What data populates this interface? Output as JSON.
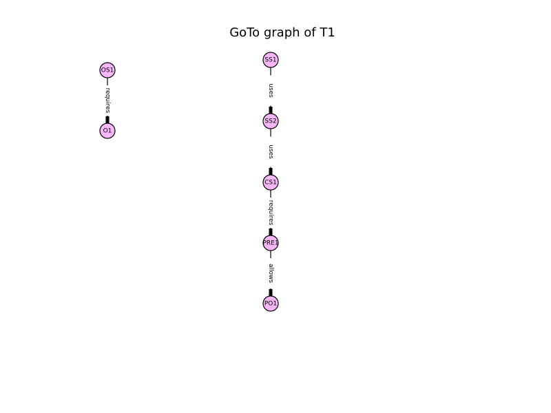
{
  "title": "GoTo graph of T1",
  "colors": {
    "node_fill": "#f7b6f7",
    "node_stroke": "#000000",
    "edge": "#000000",
    "background": "#ffffff"
  },
  "nodes": [
    {
      "id": "OS1",
      "label": "OS1"
    },
    {
      "id": "O1",
      "label": "O1"
    },
    {
      "id": "SS1",
      "label": "SS1"
    },
    {
      "id": "SS2",
      "label": "SS2"
    },
    {
      "id": "CS1",
      "label": "CS1"
    },
    {
      "id": "PRE1",
      "label": "PRE1"
    },
    {
      "id": "PO1",
      "label": "PO1"
    }
  ],
  "edges": [
    {
      "source": "OS1",
      "target": "O1",
      "label": "requires"
    },
    {
      "source": "SS1",
      "target": "SS2",
      "label": "uses"
    },
    {
      "source": "SS2",
      "target": "CS1",
      "label": "uses"
    },
    {
      "source": "CS1",
      "target": "PRE1",
      "label": "requires"
    },
    {
      "source": "PRE1",
      "target": "PO1",
      "label": "allows"
    }
  ]
}
